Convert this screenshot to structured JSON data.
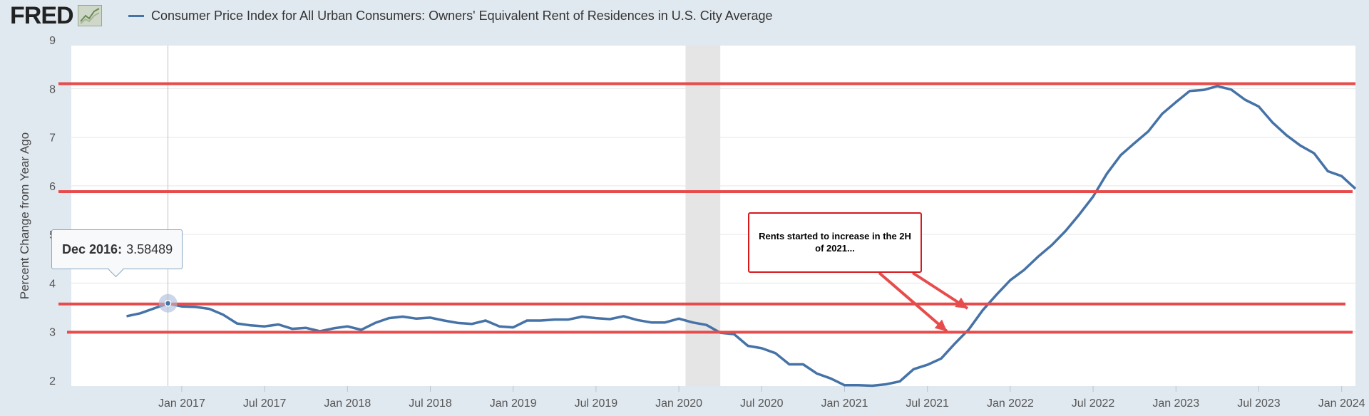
{
  "header": {
    "logo_text": "FRED",
    "logo_icon": "line-chart-icon",
    "series_title": "Consumer Price Index for All Urban Consumers: Owners' Equivalent Rent of Residences in U.S. City Average",
    "series_color": "#4572a7"
  },
  "tooltip": {
    "date": "Dec 2016:",
    "value": "3.58489"
  },
  "annotation": {
    "text": "Rents started to increase in the 2H of 2021...",
    "color": "#d7191c"
  },
  "chart_data": {
    "type": "line",
    "title": "",
    "ylabel": "Percent Change from Year Ago",
    "xlabel": "",
    "ylim": [
      2,
      9
    ],
    "yticks": [
      2,
      3,
      4,
      5,
      6,
      7,
      8,
      9
    ],
    "x_start": "2016-05",
    "x_end": "2024-02",
    "xticks": [
      {
        "date": "2017-01",
        "label": "Jan 2017"
      },
      {
        "date": "2017-07",
        "label": "Jul 2017"
      },
      {
        "date": "2018-01",
        "label": "Jan 2018"
      },
      {
        "date": "2018-07",
        "label": "Jul 2018"
      },
      {
        "date": "2019-01",
        "label": "Jan 2019"
      },
      {
        "date": "2019-07",
        "label": "Jul 2019"
      },
      {
        "date": "2020-01",
        "label": "Jan 2020"
      },
      {
        "date": "2020-07",
        "label": "Jul 2020"
      },
      {
        "date": "2021-01",
        "label": "Jan 2021"
      },
      {
        "date": "2021-07",
        "label": "Jul 2021"
      },
      {
        "date": "2022-01",
        "label": "Jan 2022"
      },
      {
        "date": "2022-07",
        "label": "Jul 2022"
      },
      {
        "date": "2023-01",
        "label": "Jan 2023"
      },
      {
        "date": "2023-07",
        "label": "Jul 2023"
      },
      {
        "date": "2024-01",
        "label": "Jan 2024"
      }
    ],
    "recession": {
      "start": "2020-02",
      "end": "2020-04",
      "color": "#e5e5e5"
    },
    "grid": true,
    "series": [
      {
        "color": "#4572a7",
        "points": [
          [
            "2016-09",
            3.32
          ],
          [
            "2016-10",
            3.38
          ],
          [
            "2016-11",
            3.48
          ],
          [
            "2016-12",
            3.58
          ],
          [
            "2017-01",
            3.52
          ],
          [
            "2017-02",
            3.51
          ],
          [
            "2017-03",
            3.47
          ],
          [
            "2017-04",
            3.35
          ],
          [
            "2017-05",
            3.17
          ],
          [
            "2017-06",
            3.13
          ],
          [
            "2017-07",
            3.11
          ],
          [
            "2017-08",
            3.15
          ],
          [
            "2017-09",
            3.06
          ],
          [
            "2017-10",
            3.08
          ],
          [
            "2017-11",
            3.01
          ],
          [
            "2017-12",
            3.07
          ],
          [
            "2018-01",
            3.11
          ],
          [
            "2018-02",
            3.04
          ],
          [
            "2018-03",
            3.18
          ],
          [
            "2018-04",
            3.28
          ],
          [
            "2018-05",
            3.31
          ],
          [
            "2018-06",
            3.27
          ],
          [
            "2018-07",
            3.29
          ],
          [
            "2018-08",
            3.23
          ],
          [
            "2018-09",
            3.18
          ],
          [
            "2018-10",
            3.16
          ],
          [
            "2018-11",
            3.23
          ],
          [
            "2018-12",
            3.11
          ],
          [
            "2019-01",
            3.09
          ],
          [
            "2019-02",
            3.23
          ],
          [
            "2019-03",
            3.23
          ],
          [
            "2019-04",
            3.25
          ],
          [
            "2019-05",
            3.25
          ],
          [
            "2019-06",
            3.31
          ],
          [
            "2019-07",
            3.28
          ],
          [
            "2019-08",
            3.26
          ],
          [
            "2019-09",
            3.32
          ],
          [
            "2019-10",
            3.24
          ],
          [
            "2019-11",
            3.19
          ],
          [
            "2019-12",
            3.19
          ],
          [
            "2020-01",
            3.27
          ],
          [
            "2020-02",
            3.19
          ],
          [
            "2020-03",
            3.14
          ],
          [
            "2020-04",
            2.98
          ],
          [
            "2020-05",
            2.95
          ],
          [
            "2020-06",
            2.71
          ],
          [
            "2020-07",
            2.66
          ],
          [
            "2020-08",
            2.56
          ],
          [
            "2020-09",
            2.33
          ],
          [
            "2020-10",
            2.33
          ],
          [
            "2020-11",
            2.14
          ],
          [
            "2020-12",
            2.04
          ],
          [
            "2021-01",
            1.9
          ],
          [
            "2021-02",
            1.9
          ],
          [
            "2021-03",
            1.89
          ],
          [
            "2021-04",
            1.92
          ],
          [
            "2021-05",
            1.98
          ],
          [
            "2021-06",
            2.23
          ],
          [
            "2021-07",
            2.32
          ],
          [
            "2021-08",
            2.45
          ],
          [
            "2021-09",
            2.76
          ],
          [
            "2021-10",
            3.05
          ],
          [
            "2021-11",
            3.44
          ],
          [
            "2021-12",
            3.76
          ],
          [
            "2022-01",
            4.06
          ],
          [
            "2022-02",
            4.27
          ],
          [
            "2022-03",
            4.54
          ],
          [
            "2022-04",
            4.78
          ],
          [
            "2022-05",
            5.07
          ],
          [
            "2022-06",
            5.41
          ],
          [
            "2022-07",
            5.78
          ],
          [
            "2022-08",
            6.25
          ],
          [
            "2022-09",
            6.63
          ],
          [
            "2022-10",
            6.88
          ],
          [
            "2022-11",
            7.12
          ],
          [
            "2022-12",
            7.48
          ],
          [
            "2023-01",
            7.72
          ],
          [
            "2023-02",
            7.95
          ],
          [
            "2023-03",
            7.97
          ],
          [
            "2023-04",
            8.05
          ],
          [
            "2023-05",
            7.98
          ],
          [
            "2023-06",
            7.77
          ],
          [
            "2023-07",
            7.63
          ],
          [
            "2023-08",
            7.3
          ],
          [
            "2023-09",
            7.04
          ],
          [
            "2023-10",
            6.83
          ],
          [
            "2023-11",
            6.67
          ],
          [
            "2023-12",
            6.3
          ],
          [
            "2024-01",
            6.2
          ],
          [
            "2024-02",
            5.94
          ]
        ]
      }
    ],
    "reference_lines": [
      {
        "y": 8.1,
        "color": "#e74c4c"
      },
      {
        "y": 5.88,
        "color": "#e74c4c"
      },
      {
        "y": 3.57,
        "color": "#e74c4c"
      },
      {
        "y": 2.99,
        "color": "#e74c4c"
      }
    ],
    "highlight_point": {
      "date": "2016-12",
      "value": 3.58489
    }
  }
}
